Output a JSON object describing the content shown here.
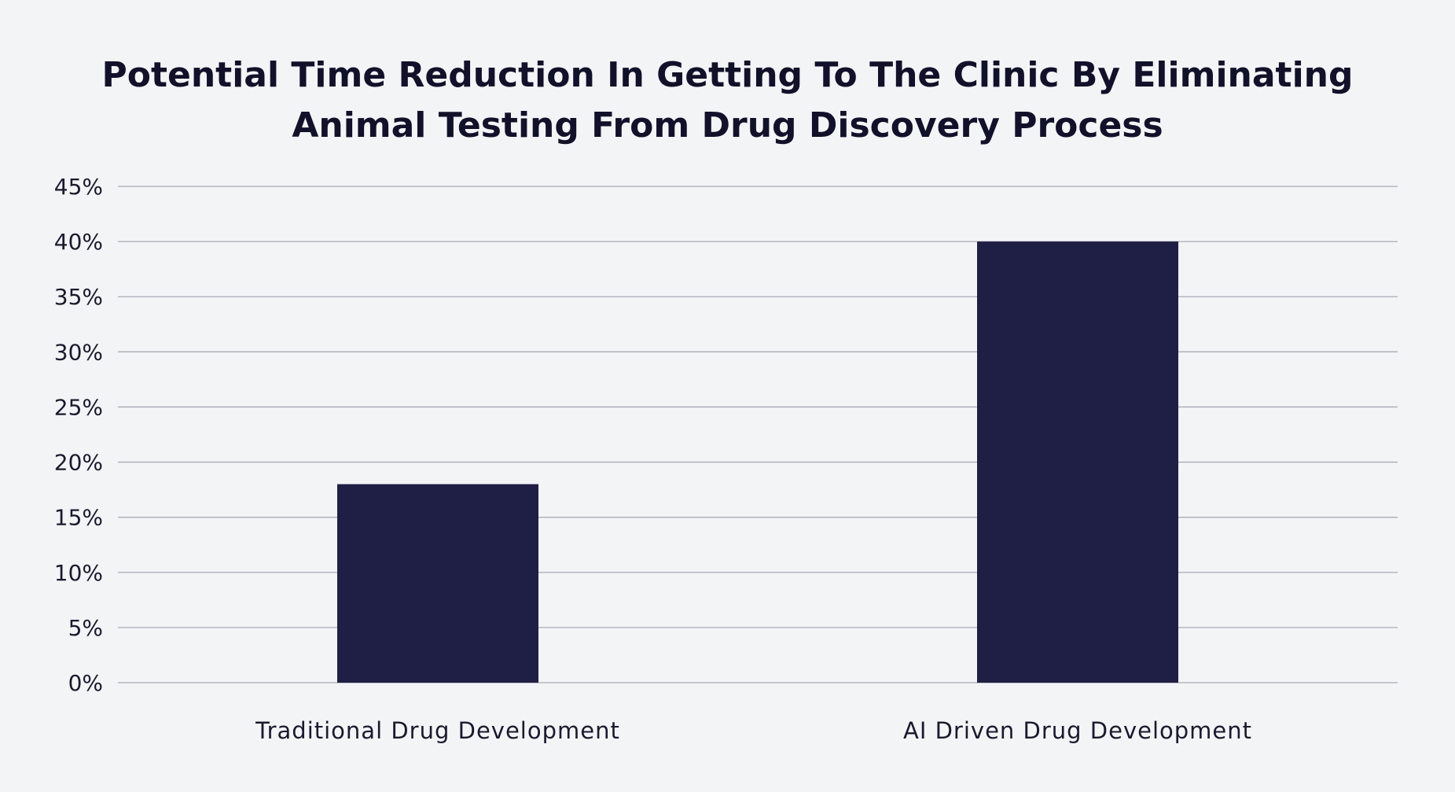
{
  "chart_data": {
    "type": "bar",
    "title_lines": [
      "Potential Time Reduction In Getting To The Clinic By Eliminating",
      "Animal Testing From Drug Discovery Process"
    ],
    "categories": [
      "Traditional Drug Development",
      "AI Driven Drug Development"
    ],
    "values": [
      18,
      40
    ],
    "unit": "%",
    "ylim": [
      0,
      45
    ],
    "y_ticks": [
      0,
      5,
      10,
      15,
      20,
      25,
      30,
      35,
      40,
      45
    ],
    "y_tick_labels": [
      "0%",
      "5%",
      "10%",
      "15%",
      "20%",
      "25%",
      "30%",
      "35%",
      "40%",
      "45%"
    ],
    "xlabel": "",
    "ylabel": "",
    "grid": true,
    "legend": "none",
    "colors": {
      "bar": "#1f1f45",
      "grid": "#a9abb5",
      "background": "#f3f4f6",
      "text": "#11112a"
    }
  }
}
